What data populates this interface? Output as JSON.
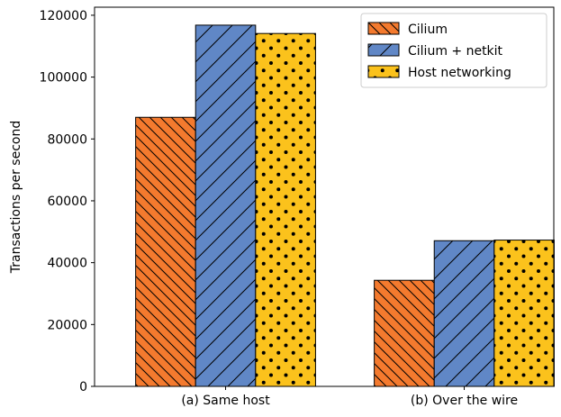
{
  "chart_data": {
    "type": "bar",
    "categories": [
      "(a) Same host",
      "(b) Over the wire"
    ],
    "series": [
      {
        "name": "Cilium",
        "values": [
          87000,
          34300
        ],
        "color": "#f47a2e",
        "pattern": "backslash-hatch"
      },
      {
        "name": "Cilium + netkit",
        "values": [
          116800,
          47100
        ],
        "color": "#6087c6",
        "pattern": "slash-hatch"
      },
      {
        "name": "Host networking",
        "values": [
          114100,
          47300
        ],
        "color": "#fbc21c",
        "pattern": "dots"
      }
    ],
    "xlabel": "",
    "ylabel": "Transactions per second",
    "ylim": [
      0,
      122600
    ],
    "yticks": [
      0,
      20000,
      40000,
      60000,
      80000,
      100000,
      120000
    ],
    "grid": false,
    "legend": "top-right"
  }
}
